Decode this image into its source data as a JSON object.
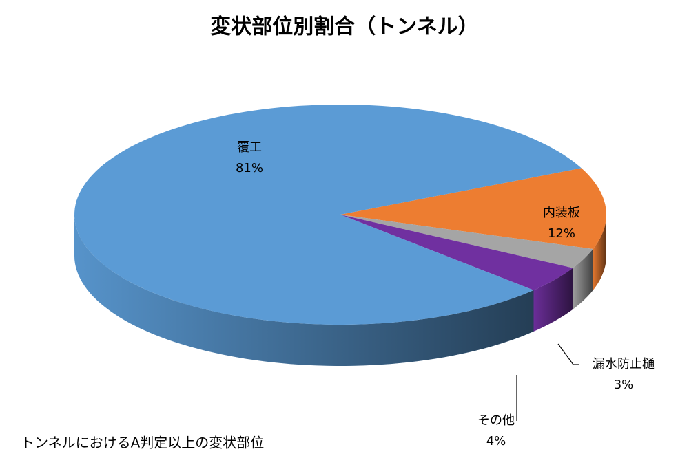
{
  "chart_data": {
    "type": "pie3d",
    "title": "変状部位別割合（トンネル）",
    "note": "トンネルにおけるA判定以上の変状部位",
    "categories": [
      "内装板",
      "漏水防止樋",
      "その他",
      "覆工"
    ],
    "values": [
      12,
      3,
      4,
      81
    ],
    "value_labels": [
      "12%",
      "3%",
      "4%",
      "81%"
    ],
    "colors": [
      "#ed7d31",
      "#a5a5a5",
      "#7030a0",
      "#5b9bd5"
    ]
  }
}
